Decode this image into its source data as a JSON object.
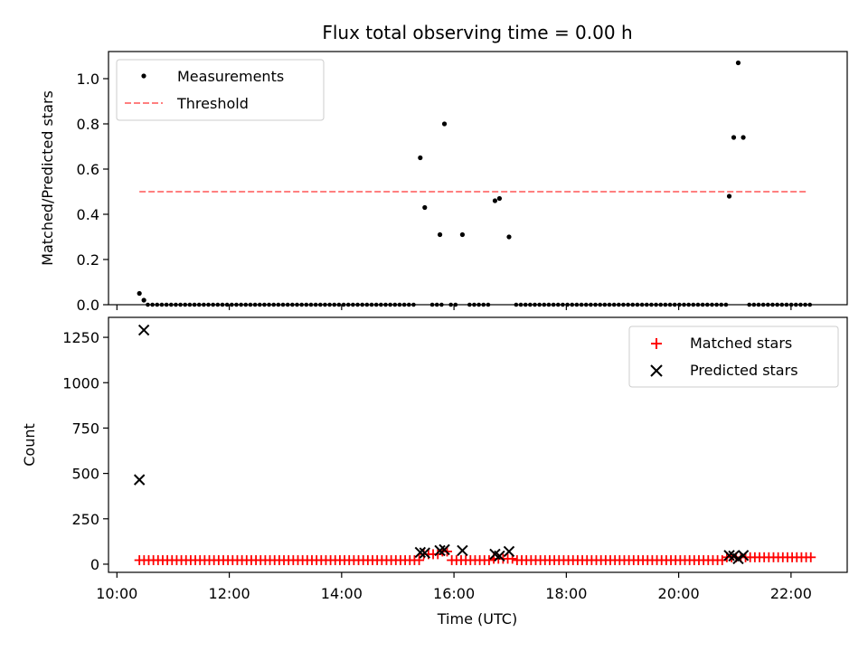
{
  "chart_data": {
    "title": "Flux total observing time = 0.00 h",
    "xlabel": "Time (UTC)",
    "xlim_hours": [
      9.85,
      23.0
    ],
    "x_ticks": [
      "10:00",
      "12:00",
      "14:00",
      "16:00",
      "18:00",
      "20:00",
      "22:00"
    ],
    "x_tick_values_hours": [
      10,
      12,
      14,
      16,
      18,
      20,
      22
    ],
    "panels": [
      {
        "type": "scatter",
        "ylabel": "Matched/Predicted stars",
        "ylim": [
          0,
          1.12
        ],
        "y_ticks": [
          "0.0",
          "0.2",
          "0.4",
          "0.6",
          "0.8",
          "1.0"
        ],
        "y_tick_values": [
          0,
          0.2,
          0.4,
          0.6,
          0.8,
          1.0
        ],
        "legend": {
          "placement": "upper-left",
          "entries": [
            "Measurements",
            "Threshold"
          ]
        },
        "series": [
          {
            "name": "Measurements",
            "marker": "dot",
            "color": "#000000",
            "points": [
              [
                10.4,
                0.05
              ],
              [
                10.48,
                0.02
              ],
              [
                15.4,
                0.65
              ],
              [
                15.48,
                0.43
              ],
              [
                15.75,
                0.31
              ],
              [
                15.83,
                0.8
              ],
              [
                16.15,
                0.31
              ],
              [
                16.73,
                0.46
              ],
              [
                16.81,
                0.47
              ],
              [
                16.98,
                0.3
              ],
              [
                20.9,
                0.48
              ],
              [
                20.98,
                0.74
              ],
              [
                21.06,
                1.07
              ],
              [
                21.15,
                0.74
              ]
            ],
            "zero_range_hours": [
              10.55,
              22.4
            ],
            "zero_step_hours": 0.083,
            "zero_gaps_hours": [
              [
                15.35,
                15.55
              ],
              [
                15.78,
                15.92
              ],
              [
                16.08,
                16.22
              ],
              [
                16.68,
                16.88
              ],
              [
                16.92,
                17.04
              ],
              [
                20.86,
                21.25
              ]
            ]
          },
          {
            "name": "Threshold",
            "style": "dashed",
            "color": "#ff7f7f",
            "y": 0.5,
            "x_range_hours": [
              10.4,
              22.3
            ]
          }
        ]
      },
      {
        "type": "scatter",
        "ylabel": "Count",
        "ylim": [
          -45,
          1360
        ],
        "y_ticks": [
          "0",
          "250",
          "500",
          "750",
          "1000",
          "1250"
        ],
        "y_tick_values": [
          0,
          250,
          500,
          750,
          1000,
          1250
        ],
        "legend": {
          "placement": "upper-right",
          "entries": [
            "Matched stars",
            "Predicted stars"
          ]
        },
        "series": [
          {
            "name": "Matched stars",
            "marker": "plus",
            "color": "#ff0000",
            "baseline": 22,
            "range_hours": [
              10.4,
              22.4
            ],
            "step_hours": 0.083,
            "bumps": [
              {
                "start": 15.4,
                "end": 15.95,
                "value": 55
              },
              {
                "start": 15.72,
                "end": 15.92,
                "value": 70
              },
              {
                "start": 16.65,
                "end": 17.05,
                "value": 30
              },
              {
                "start": 20.85,
                "end": 22.4,
                "value": 38
              }
            ]
          },
          {
            "name": "Predicted stars",
            "marker": "x",
            "color": "#000000",
            "points": [
              [
                10.4,
                465
              ],
              [
                10.48,
                1290
              ],
              [
                15.4,
                65
              ],
              [
                15.48,
                62
              ],
              [
                15.75,
                75
              ],
              [
                15.83,
                80
              ],
              [
                16.15,
                75
              ],
              [
                16.73,
                55
              ],
              [
                16.81,
                45
              ],
              [
                16.98,
                70
              ],
              [
                20.9,
                48
              ],
              [
                20.98,
                45
              ],
              [
                21.06,
                30
              ],
              [
                21.15,
                48
              ]
            ]
          }
        ]
      }
    ]
  }
}
